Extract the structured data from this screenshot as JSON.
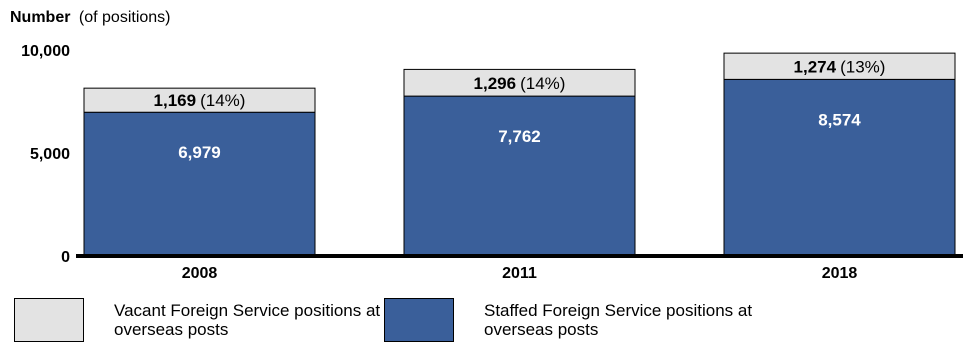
{
  "chart_data": {
    "type": "bar",
    "stacked": true,
    "y_axis_title_bold": "Number",
    "y_axis_title_rest": "(of positions)",
    "ylim": [
      0,
      10000
    ],
    "yticks": [
      "0",
      "5,000",
      "10,000"
    ],
    "ytick_values": [
      0,
      5000,
      10000
    ],
    "categories": [
      "2008",
      "2011",
      "2018"
    ],
    "series": [
      {
        "name": "Staffed Foreign Service positions at overseas posts",
        "color": "#3a5f9a",
        "values": [
          6979,
          7762,
          8574
        ],
        "labels": [
          "6,979",
          "7,762",
          "8,574"
        ]
      },
      {
        "name": "Vacant Foreign Service positions at overseas posts",
        "color": "#e3e3e3",
        "values": [
          1169,
          1296,
          1274
        ],
        "labels_bold": [
          "1,169",
          "1,296",
          "1,274"
        ],
        "labels_rest": [
          "(14%)",
          "(14%)",
          "(13%)"
        ]
      }
    ],
    "legend": {
      "vacant": "Vacant Foreign Service positions at overseas posts",
      "staffed": "Staffed Foreign Service positions at overseas posts"
    }
  }
}
